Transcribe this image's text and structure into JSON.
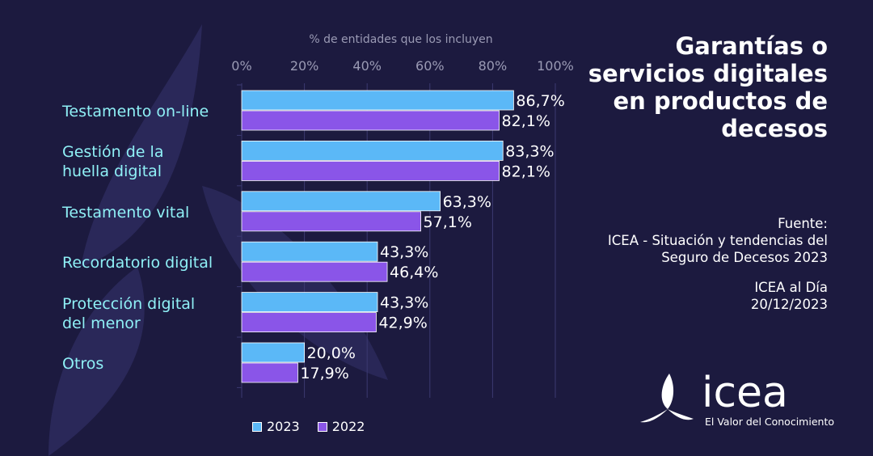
{
  "title_lines": [
    "Garantías o",
    "servicios digitales",
    "en productos de",
    "decesos"
  ],
  "source": {
    "label": "Fuente:",
    "line1": "ICEA - Situación y tendencias del",
    "line2": "Seguro de Decesos 2023",
    "pub": "ICEA al Día",
    "date": "20/12/2023"
  },
  "logo": {
    "name": "icea",
    "tagline": "El Valor del Conocimiento"
  },
  "colors": {
    "background": "#1c1a3f",
    "series_2023": "#5bb8f7",
    "series_2022": "#8a55e8",
    "category_text": "#8ff0f6",
    "axis_text": "#9a9ab4"
  },
  "chart_data": {
    "type": "bar",
    "orientation": "horizontal",
    "xlabel": "% de entidades que los incluyen",
    "xlim": [
      0,
      100
    ],
    "x_ticks": [
      "0%",
      "20%",
      "40%",
      "60%",
      "80%",
      "100%"
    ],
    "categories": [
      [
        "Testamento on-line"
      ],
      [
        "Gestión de la",
        "huella digital"
      ],
      [
        "Testamento vital"
      ],
      [
        "Recordatorio digital"
      ],
      [
        "Protección digital",
        "del menor"
      ],
      [
        "Otros"
      ]
    ],
    "series": [
      {
        "name": "2023",
        "values": [
          86.7,
          83.3,
          63.3,
          43.3,
          43.3,
          20.0
        ],
        "labels": [
          "86,7%",
          "83,3%",
          "63,3%",
          "43,3%",
          "43,3%",
          "20,0%"
        ]
      },
      {
        "name": "2022",
        "values": [
          82.1,
          82.1,
          57.1,
          46.4,
          42.9,
          17.9
        ],
        "labels": [
          "82,1%",
          "82,1%",
          "57,1%",
          "46,4%",
          "42,9%",
          "17,9%"
        ]
      }
    ],
    "legend": "bottom-left"
  }
}
